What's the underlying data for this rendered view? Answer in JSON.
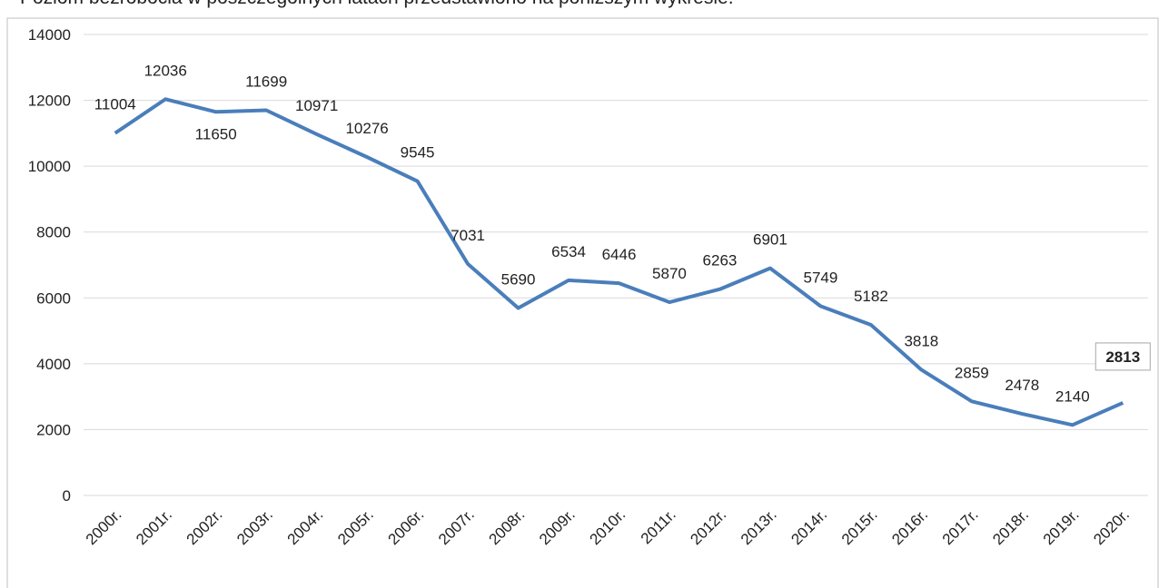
{
  "intro_text": "Poziom bezrobocia w poszczególnych latach przedstawiono na poniższym wykresie.",
  "chart_data": {
    "type": "line",
    "categories": [
      "2000r.",
      "2001r.",
      "2002r.",
      "2003r.",
      "2004r.",
      "2005r.",
      "2006r.",
      "2007r.",
      "2008r.",
      "2009r.",
      "2010r.",
      "2011r.",
      "2012r.",
      "2013r.",
      "2014r.",
      "2015r.",
      "2016r.",
      "2017r.",
      "2018r.",
      "2019r.",
      "2020r."
    ],
    "values": [
      11004,
      12036,
      11650,
      11699,
      10971,
      10276,
      9545,
      7031,
      5690,
      6534,
      6446,
      5870,
      6263,
      6901,
      5749,
      5182,
      3818,
      2859,
      2478,
      2140,
      2813
    ],
    "color": "#4a7ebb",
    "ylim": [
      0,
      14000
    ],
    "yticks": [
      0,
      2000,
      4000,
      6000,
      8000,
      10000,
      12000,
      14000
    ],
    "grid": true
  }
}
